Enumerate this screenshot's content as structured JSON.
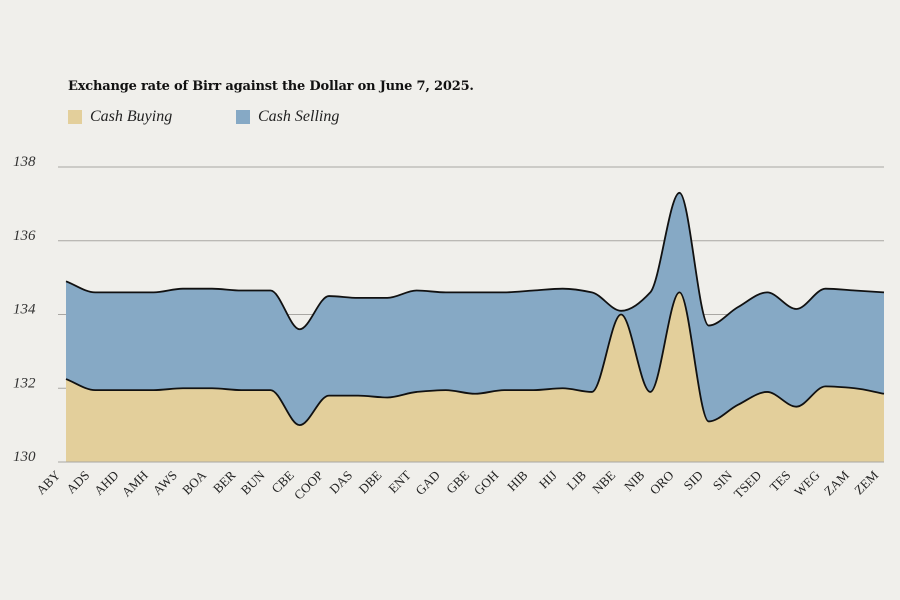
{
  "chart_data": {
    "type": "area",
    "title": "Exchange rate of Birr against the Dollar on June 7, 2025.",
    "categories": [
      "ABY",
      "ADS",
      "AHD",
      "AMH",
      "AWS",
      "BOA",
      "BER",
      "BUN",
      "CBE",
      "COOP",
      "DAS",
      "DBE",
      "ENT",
      "GAD",
      "GBE",
      "GOH",
      "HIB",
      "HIJ",
      "LIB",
      "NBE",
      "NIB",
      "ORO",
      "SID",
      "SIN",
      "TSED",
      "TES",
      "WEG",
      "ZAM",
      "ZEM"
    ],
    "series": [
      {
        "name": "Cash Selling",
        "color": "#86a9c5",
        "values": [
          134.9,
          134.6,
          134.6,
          134.6,
          134.7,
          134.7,
          134.65,
          134.65,
          133.6,
          134.5,
          134.45,
          134.45,
          134.65,
          134.6,
          134.6,
          134.6,
          134.65,
          134.7,
          134.6,
          134.1,
          134.6,
          137.3,
          133.7,
          134.2,
          134.6,
          134.15,
          134.7,
          134.65,
          134.6
        ]
      },
      {
        "name": "Cash Buying",
        "color": "#e3cf9b",
        "values": [
          132.25,
          131.95,
          131.95,
          131.95,
          132.0,
          132.0,
          131.95,
          131.95,
          131.0,
          131.8,
          131.8,
          131.75,
          131.9,
          131.95,
          131.85,
          131.95,
          131.95,
          132.0,
          131.9,
          134.0,
          131.9,
          134.6,
          131.1,
          131.55,
          131.9,
          131.5,
          132.05,
          132.0,
          131.85
        ]
      }
    ],
    "ylim": [
      130,
      138
    ],
    "yticks": [
      130,
      132,
      134,
      136,
      138
    ],
    "xlabel": "",
    "ylabel": "",
    "grid": true,
    "legend_position": "top-left"
  }
}
